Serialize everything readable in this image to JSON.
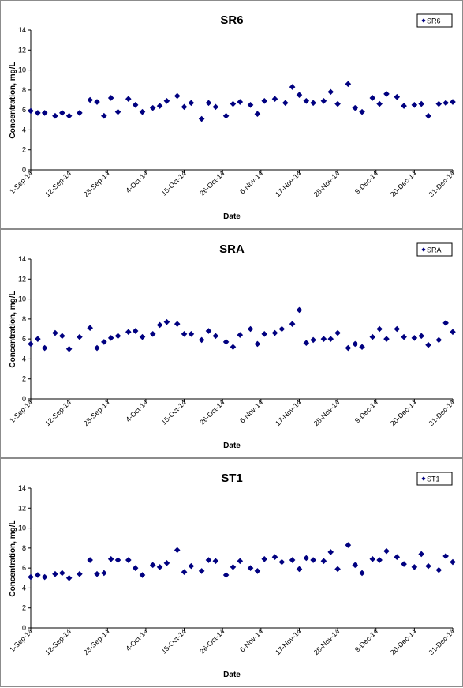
{
  "marker_color": "#000080",
  "x_ticks": [
    "1-Sep-14",
    "12-Sep-14",
    "23-Sep-14",
    "4-Oct-14",
    "15-Oct-14",
    "26-Oct-14",
    "6-Nov-14",
    "17-Nov-14",
    "28-Nov-14",
    "9-Dec-14",
    "20-Dec-14",
    "31-Dec-14"
  ],
  "chart_data": [
    {
      "type": "scatter",
      "title": "SR6",
      "xlabel": "Date",
      "ylabel": "Concentration, mg/L",
      "ylim": [
        0,
        14
      ],
      "yticks": [
        0,
        2,
        4,
        6,
        8,
        10,
        12,
        14
      ],
      "xlim": [
        "2014-09-01",
        "2014-12-31"
      ],
      "legend": "top-right",
      "grid": false,
      "series": [
        {
          "name": "SR6",
          "x": [
            "2014-09-01",
            "2014-09-03",
            "2014-09-05",
            "2014-09-08",
            "2014-09-10",
            "2014-09-12",
            "2014-09-15",
            "2014-09-18",
            "2014-09-20",
            "2014-09-22",
            "2014-09-24",
            "2014-09-26",
            "2014-09-29",
            "2014-10-01",
            "2014-10-03",
            "2014-10-06",
            "2014-10-08",
            "2014-10-10",
            "2014-10-13",
            "2014-10-15",
            "2014-10-17",
            "2014-10-20",
            "2014-10-22",
            "2014-10-24",
            "2014-10-27",
            "2014-10-29",
            "2014-10-31",
            "2014-11-03",
            "2014-11-05",
            "2014-11-07",
            "2014-11-10",
            "2014-11-13",
            "2014-11-15",
            "2014-11-17",
            "2014-11-19",
            "2014-11-21",
            "2014-11-24",
            "2014-11-26",
            "2014-11-28",
            "2014-12-01",
            "2014-12-03",
            "2014-12-05",
            "2014-12-08",
            "2014-12-10",
            "2014-12-12",
            "2014-12-15",
            "2014-12-17",
            "2014-12-20",
            "2014-12-22",
            "2014-12-24",
            "2014-12-27",
            "2014-12-29",
            "2014-12-31"
          ],
          "y": [
            5.9,
            5.7,
            5.7,
            5.4,
            5.7,
            5.4,
            5.7,
            7.0,
            6.8,
            5.4,
            7.2,
            5.8,
            7.1,
            6.5,
            5.8,
            6.2,
            6.4,
            6.9,
            7.4,
            6.3,
            6.7,
            5.1,
            6.7,
            6.3,
            5.4,
            6.6,
            6.8,
            6.5,
            5.6,
            6.9,
            7.1,
            6.7,
            8.3,
            7.5,
            6.9,
            6.7,
            6.9,
            7.8,
            6.6,
            8.6,
            6.2,
            5.8,
            7.2,
            6.6,
            7.6,
            7.3,
            6.4,
            6.5,
            6.6,
            5.4,
            6.6,
            6.7,
            6.8
          ]
        }
      ]
    },
    {
      "type": "scatter",
      "title": "SRA",
      "xlabel": "Date",
      "ylabel": "Concentration, mg/L",
      "ylim": [
        0,
        14
      ],
      "yticks": [
        0,
        2,
        4,
        6,
        8,
        10,
        12,
        14
      ],
      "xlim": [
        "2014-09-01",
        "2014-12-31"
      ],
      "legend": "top-right",
      "grid": false,
      "series": [
        {
          "name": "SRA",
          "x": [
            "2014-09-01",
            "2014-09-03",
            "2014-09-05",
            "2014-09-08",
            "2014-09-10",
            "2014-09-12",
            "2014-09-15",
            "2014-09-18",
            "2014-09-20",
            "2014-09-22",
            "2014-09-24",
            "2014-09-26",
            "2014-09-29",
            "2014-10-01",
            "2014-10-03",
            "2014-10-06",
            "2014-10-08",
            "2014-10-10",
            "2014-10-13",
            "2014-10-15",
            "2014-10-17",
            "2014-10-20",
            "2014-10-22",
            "2014-10-24",
            "2014-10-27",
            "2014-10-29",
            "2014-10-31",
            "2014-11-03",
            "2014-11-05",
            "2014-11-07",
            "2014-11-10",
            "2014-11-12",
            "2014-11-15",
            "2014-11-17",
            "2014-11-19",
            "2014-11-21",
            "2014-11-24",
            "2014-11-26",
            "2014-11-28",
            "2014-12-01",
            "2014-12-03",
            "2014-12-05",
            "2014-12-08",
            "2014-12-10",
            "2014-12-12",
            "2014-12-15",
            "2014-12-17",
            "2014-12-20",
            "2014-12-22",
            "2014-12-24",
            "2014-12-27",
            "2014-12-29",
            "2014-12-31"
          ],
          "y": [
            5.5,
            6.0,
            5.1,
            6.6,
            6.3,
            5.0,
            6.2,
            7.1,
            5.1,
            5.7,
            6.1,
            6.3,
            6.7,
            6.8,
            6.2,
            6.5,
            7.4,
            7.7,
            7.5,
            6.5,
            6.5,
            5.9,
            6.8,
            6.3,
            5.7,
            5.2,
            6.4,
            7.0,
            5.5,
            6.5,
            6.6,
            7.0,
            7.5,
            8.9,
            5.6,
            5.9,
            6.0,
            6.0,
            6.6,
            5.1,
            5.5,
            5.2,
            6.2,
            7.0,
            6.0,
            7.0,
            6.2,
            6.1,
            6.3,
            5.4,
            5.9,
            7.6,
            6.7
          ]
        }
      ]
    },
    {
      "type": "scatter",
      "title": "ST1",
      "xlabel": "Date",
      "ylabel": "Concentration, mg/L",
      "ylim": [
        0,
        14
      ],
      "yticks": [
        0,
        2,
        4,
        6,
        8,
        10,
        12,
        14
      ],
      "xlim": [
        "2014-09-01",
        "2014-12-31"
      ],
      "legend": "top-right",
      "grid": false,
      "series": [
        {
          "name": "ST1",
          "x": [
            "2014-09-01",
            "2014-09-03",
            "2014-09-05",
            "2014-09-08",
            "2014-09-10",
            "2014-09-12",
            "2014-09-15",
            "2014-09-18",
            "2014-09-20",
            "2014-09-22",
            "2014-09-24",
            "2014-09-26",
            "2014-09-29",
            "2014-10-01",
            "2014-10-03",
            "2014-10-06",
            "2014-10-08",
            "2014-10-10",
            "2014-10-13",
            "2014-10-15",
            "2014-10-17",
            "2014-10-20",
            "2014-10-22",
            "2014-10-24",
            "2014-10-27",
            "2014-10-29",
            "2014-10-31",
            "2014-11-03",
            "2014-11-05",
            "2014-11-07",
            "2014-11-10",
            "2014-11-12",
            "2014-11-15",
            "2014-11-17",
            "2014-11-19",
            "2014-11-21",
            "2014-11-24",
            "2014-11-26",
            "2014-11-28",
            "2014-12-01",
            "2014-12-03",
            "2014-12-05",
            "2014-12-08",
            "2014-12-10",
            "2014-12-12",
            "2014-12-15",
            "2014-12-17",
            "2014-12-20",
            "2014-12-22",
            "2014-12-24",
            "2014-12-27",
            "2014-12-29",
            "2014-12-31"
          ],
          "y": [
            5.1,
            5.3,
            5.1,
            5.4,
            5.5,
            5.0,
            5.4,
            6.8,
            5.4,
            5.5,
            6.9,
            6.8,
            6.8,
            6.0,
            5.3,
            6.3,
            6.1,
            6.5,
            7.8,
            5.6,
            6.2,
            5.7,
            6.8,
            6.7,
            5.3,
            6.1,
            6.7,
            6.0,
            5.7,
            6.9,
            7.1,
            6.6,
            6.8,
            5.9,
            7.0,
            6.8,
            6.7,
            7.6,
            5.9,
            8.3,
            6.3,
            5.5,
            6.9,
            6.8,
            7.7,
            7.1,
            6.4,
            6.1,
            7.4,
            6.2,
            5.8,
            7.2,
            6.6
          ]
        }
      ]
    }
  ]
}
